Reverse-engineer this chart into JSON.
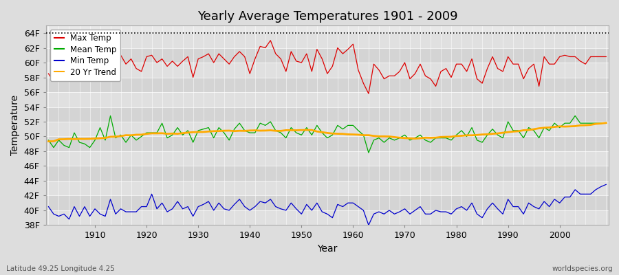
{
  "title": "Yearly Average Temperatures 1901 - 2009",
  "xlabel": "Year",
  "ylabel": "Temperature",
  "lat_label": "Latitude 49.25 Longitude 4.25",
  "source_label": "worldspecies.org",
  "years": [
    1901,
    1902,
    1903,
    1904,
    1905,
    1906,
    1907,
    1908,
    1909,
    1910,
    1911,
    1912,
    1913,
    1914,
    1915,
    1916,
    1917,
    1918,
    1919,
    1920,
    1921,
    1922,
    1923,
    1924,
    1925,
    1926,
    1927,
    1928,
    1929,
    1930,
    1931,
    1932,
    1933,
    1934,
    1935,
    1936,
    1937,
    1938,
    1939,
    1940,
    1941,
    1942,
    1943,
    1944,
    1945,
    1946,
    1947,
    1948,
    1949,
    1950,
    1951,
    1952,
    1953,
    1954,
    1955,
    1956,
    1957,
    1958,
    1959,
    1960,
    1961,
    1962,
    1963,
    1964,
    1965,
    1966,
    1967,
    1968,
    1969,
    1970,
    1971,
    1972,
    1973,
    1974,
    1975,
    1976,
    1977,
    1978,
    1979,
    1980,
    1981,
    1982,
    1983,
    1984,
    1985,
    1986,
    1987,
    1988,
    1989,
    1990,
    1991,
    1992,
    1993,
    1994,
    1995,
    1996,
    1997,
    1998,
    1999,
    2000,
    2001,
    2002,
    2003,
    2004,
    2005,
    2006,
    2007,
    2008,
    2009
  ],
  "max_temp": [
    58.5,
    57.5,
    58.8,
    57.8,
    59.5,
    59.2,
    58.0,
    59.5,
    58.0,
    59.8,
    59.5,
    59.2,
    63.5,
    60.2,
    61.0,
    59.8,
    60.5,
    59.2,
    58.8,
    60.8,
    61.0,
    60.0,
    60.5,
    59.5,
    60.2,
    59.5,
    60.2,
    60.8,
    58.0,
    60.5,
    60.8,
    61.2,
    60.0,
    61.2,
    60.5,
    59.8,
    60.8,
    61.5,
    60.8,
    58.5,
    60.5,
    62.2,
    62.0,
    63.0,
    61.2,
    60.5,
    58.8,
    61.5,
    60.2,
    60.0,
    61.2,
    58.8,
    61.8,
    60.5,
    58.5,
    59.5,
    62.0,
    61.2,
    61.8,
    62.5,
    59.0,
    57.2,
    55.8,
    59.8,
    59.0,
    57.8,
    58.2,
    58.2,
    58.8,
    60.0,
    57.8,
    58.5,
    59.8,
    58.2,
    57.8,
    56.8,
    58.8,
    59.2,
    58.0,
    59.8,
    59.8,
    58.8,
    60.5,
    57.8,
    57.2,
    59.2,
    60.8,
    59.2,
    58.8,
    60.8,
    59.8,
    59.8,
    57.8,
    59.2,
    59.8,
    56.8,
    60.8,
    59.8,
    59.8,
    60.8,
    61.0,
    60.8,
    60.8,
    60.2,
    59.8,
    60.8,
    60.8,
    60.8,
    60.8
  ],
  "mean_temp": [
    49.5,
    48.5,
    49.5,
    48.8,
    48.5,
    50.5,
    49.2,
    49.0,
    48.5,
    49.5,
    51.2,
    49.5,
    52.8,
    49.8,
    50.2,
    49.2,
    50.2,
    49.5,
    50.0,
    50.5,
    50.5,
    50.5,
    51.8,
    49.8,
    50.2,
    51.2,
    50.2,
    50.8,
    49.2,
    50.8,
    51.0,
    51.2,
    49.8,
    51.2,
    50.5,
    49.5,
    51.0,
    51.8,
    50.8,
    50.5,
    50.5,
    51.8,
    51.5,
    52.0,
    50.8,
    50.5,
    49.8,
    51.2,
    50.5,
    50.2,
    51.2,
    50.2,
    51.5,
    50.5,
    49.8,
    50.2,
    51.5,
    51.0,
    51.5,
    51.5,
    50.8,
    50.2,
    47.8,
    49.5,
    49.8,
    49.2,
    49.8,
    49.5,
    49.8,
    50.2,
    49.5,
    49.8,
    50.2,
    49.5,
    49.2,
    49.8,
    49.8,
    49.8,
    49.5,
    50.2,
    50.8,
    50.0,
    51.2,
    49.5,
    49.2,
    50.2,
    51.0,
    50.2,
    49.8,
    52.0,
    50.8,
    50.8,
    49.8,
    51.2,
    50.8,
    49.8,
    51.2,
    50.8,
    51.8,
    51.2,
    51.8,
    51.8,
    52.8,
    51.8,
    51.8,
    51.8,
    51.8,
    51.8,
    51.8
  ],
  "min_temp": [
    40.5,
    39.5,
    39.2,
    39.5,
    38.8,
    40.5,
    39.2,
    40.5,
    39.2,
    40.2,
    39.5,
    39.2,
    41.5,
    39.5,
    40.2,
    39.8,
    39.8,
    39.8,
    40.5,
    40.5,
    42.2,
    40.2,
    41.0,
    39.8,
    40.2,
    41.2,
    40.2,
    40.5,
    39.2,
    40.5,
    40.8,
    41.2,
    40.0,
    41.0,
    40.2,
    40.0,
    40.8,
    41.5,
    40.5,
    40.0,
    40.5,
    41.2,
    41.0,
    41.5,
    40.5,
    40.2,
    40.0,
    41.0,
    40.2,
    39.5,
    40.8,
    40.0,
    41.0,
    39.8,
    39.5,
    39.0,
    40.8,
    40.5,
    41.0,
    41.0,
    40.5,
    40.0,
    38.0,
    39.5,
    39.8,
    39.5,
    40.0,
    39.5,
    39.8,
    40.2,
    39.5,
    40.0,
    40.5,
    39.5,
    39.5,
    40.0,
    39.8,
    39.8,
    39.5,
    40.2,
    40.5,
    40.0,
    41.0,
    39.5,
    39.0,
    40.2,
    41.0,
    40.2,
    39.5,
    41.5,
    40.5,
    40.5,
    39.5,
    41.0,
    40.5,
    40.2,
    41.2,
    40.5,
    41.5,
    41.0,
    41.8,
    41.8,
    42.8,
    42.2,
    42.2,
    42.2,
    42.8,
    43.2,
    43.5
  ],
  "max_color": "#dd0000",
  "mean_color": "#00aa00",
  "min_color": "#0000cc",
  "trend_color": "#ffaa00",
  "bg_color": "#dddddd",
  "plot_bg_color_light": "#e8e8e8",
  "plot_bg_color_dark": "#d8d8d8",
  "ylim": [
    38,
    65
  ],
  "ylim_display": [
    38,
    64
  ],
  "yticks": [
    38,
    40,
    42,
    44,
    46,
    48,
    50,
    52,
    54,
    56,
    58,
    60,
    62,
    64
  ],
  "ytick_labels": [
    "38F",
    "40F",
    "42F",
    "44F",
    "46F",
    "48F",
    "50F",
    "52F",
    "54F",
    "56F",
    "58F",
    "60F",
    "62F",
    "64F"
  ],
  "dotted_line_y": 64,
  "title_fontsize": 13,
  "axis_fontsize": 9,
  "legend_fontsize": 8.5,
  "band_colors": [
    "#e0e0e0",
    "#d4d4d4"
  ]
}
